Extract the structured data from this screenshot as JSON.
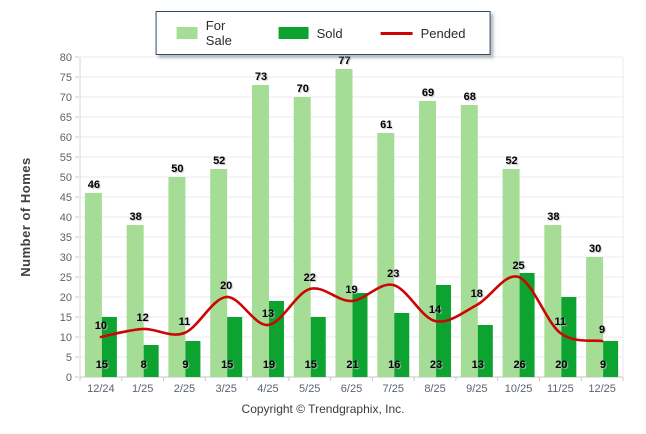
{
  "chart_data": {
    "type": "bar+line",
    "categories": [
      "12/24",
      "1/25",
      "2/25",
      "3/25",
      "4/25",
      "5/25",
      "6/25",
      "7/25",
      "8/25",
      "9/25",
      "10/25",
      "11/25",
      "12/25"
    ],
    "series": [
      {
        "name": "For Sale",
        "type": "bar",
        "color": "#a5dd96",
        "values": [
          46,
          38,
          50,
          52,
          73,
          70,
          77,
          61,
          69,
          68,
          52,
          38,
          30
        ]
      },
      {
        "name": "Sold",
        "type": "bar",
        "color": "#0da330",
        "values": [
          15,
          8,
          9,
          15,
          19,
          15,
          21,
          16,
          23,
          13,
          26,
          20,
          9
        ]
      },
      {
        "name": "Pended",
        "type": "line",
        "color": "#cc0605",
        "values": [
          10,
          12,
          11,
          20,
          13,
          22,
          19,
          23,
          14,
          18,
          25,
          11,
          9
        ]
      }
    ],
    "title": "",
    "xlabel": "",
    "ylabel": "Number of Homes",
    "ylim": [
      0,
      80
    ],
    "ytick_step": 5,
    "grid": "horizontal",
    "legend_position": "top-center",
    "grid_color": "#ebebeb",
    "baseline_color": "#c6c6c6",
    "axis_text_color": "#5a6372"
  },
  "footer": {
    "copyright": "Copyright © Trendgraphix, Inc."
  }
}
